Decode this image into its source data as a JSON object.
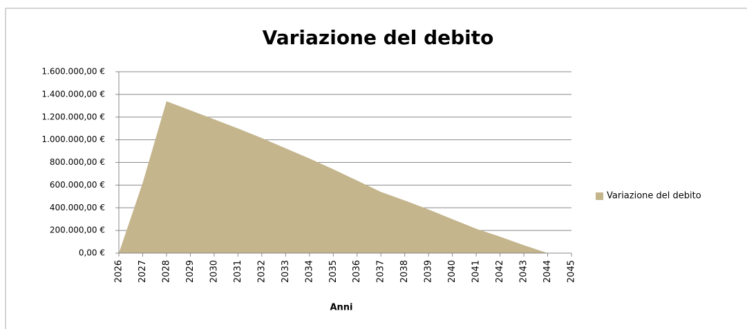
{
  "chart_data": {
    "type": "area",
    "title": "Variazione del debito",
    "x_label": "Anni",
    "categories": [
      "2026",
      "2027",
      "2028",
      "2029",
      "2030",
      "2031",
      "2032",
      "2033",
      "2034",
      "2035",
      "2036",
      "2037",
      "2038",
      "2039",
      "2040",
      "2041",
      "2042",
      "2043",
      "2044",
      "2045"
    ],
    "series": [
      {
        "name": "Variazione del debito",
        "color": "#c4b58d",
        "values": [
          0,
          620000,
          1340000,
          1260000,
          1180000,
          1100000,
          1015000,
          925000,
          835000,
          740000,
          640000,
          540000,
          465000,
          385000,
          300000,
          215000,
          145000,
          70000,
          0,
          0
        ]
      }
    ],
    "ylim": [
      0,
      1600000
    ],
    "yticks": [
      {
        "value": 0,
        "label": "0,00 €"
      },
      {
        "value": 200000,
        "label": "200.000,00 €"
      },
      {
        "value": 400000,
        "label": "400.000,00 €"
      },
      {
        "value": 600000,
        "label": "600.000,00 €"
      },
      {
        "value": 800000,
        "label": "800.000,00 €"
      },
      {
        "value": 1000000,
        "label": "1.000.000,00 €"
      },
      {
        "value": 1200000,
        "label": "1.200.000,00 €"
      },
      {
        "value": 1400000,
        "label": "1.400.000,00 €"
      },
      {
        "value": 1600000,
        "label": "1.600.000,00 €"
      }
    ],
    "grid": true,
    "legend": "right"
  }
}
